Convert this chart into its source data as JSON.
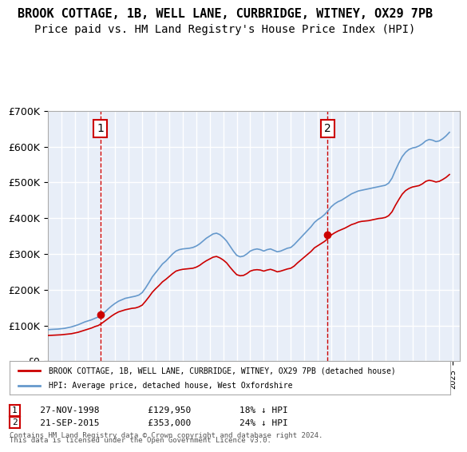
{
  "title": "BROOK COTTAGE, 1B, WELL LANE, CURBRIDGE, WITNEY, OX29 7PB",
  "subtitle": "Price paid vs. HM Land Registry's House Price Index (HPI)",
  "title_fontsize": 11,
  "subtitle_fontsize": 10,
  "ylim": [
    0,
    700000
  ],
  "yticks": [
    0,
    100000,
    200000,
    300000,
    400000,
    500000,
    600000,
    700000
  ],
  "ytick_labels": [
    "£0",
    "£100K",
    "£200K",
    "£300K",
    "£400K",
    "£500K",
    "£600K",
    "£700K"
  ],
  "xlim_start": 1995.0,
  "xlim_end": 2025.5,
  "background_color": "#e8eef8",
  "plot_bg_color": "#e8eef8",
  "grid_color": "#ffffff",
  "red_color": "#cc0000",
  "blue_color": "#6699cc",
  "purchase1_date": "27-NOV-1998",
  "purchase1_price": 129950,
  "purchase1_label": "1",
  "purchase1_x": 1998.9,
  "purchase2_date": "21-SEP-2015",
  "purchase2_price": 353000,
  "purchase2_label": "2",
  "purchase2_x": 2015.72,
  "legend_line1": "BROOK COTTAGE, 1B, WELL LANE, CURBRIDGE, WITNEY, OX29 7PB (detached house)",
  "legend_line2": "HPI: Average price, detached house, West Oxfordshire",
  "footer1": "Contains HM Land Registry data © Crown copyright and database right 2024.",
  "footer2": "This data is licensed under the Open Government Licence v3.0.",
  "note1_label": "1",
  "note1_text": "   27-NOV-1998         £129,950         18% ↓ HPI",
  "note2_label": "2",
  "note2_text": "   21-SEP-2015         £353,000         24% ↓ HPI",
  "hpi_data_x": [
    1995.0,
    1995.25,
    1995.5,
    1995.75,
    1996.0,
    1996.25,
    1996.5,
    1996.75,
    1997.0,
    1997.25,
    1997.5,
    1997.75,
    1998.0,
    1998.25,
    1998.5,
    1998.75,
    1999.0,
    1999.25,
    1999.5,
    1999.75,
    2000.0,
    2000.25,
    2000.5,
    2000.75,
    2001.0,
    2001.25,
    2001.5,
    2001.75,
    2002.0,
    2002.25,
    2002.5,
    2002.75,
    2003.0,
    2003.25,
    2003.5,
    2003.75,
    2004.0,
    2004.25,
    2004.5,
    2004.75,
    2005.0,
    2005.25,
    2005.5,
    2005.75,
    2006.0,
    2006.25,
    2006.5,
    2006.75,
    2007.0,
    2007.25,
    2007.5,
    2007.75,
    2008.0,
    2008.25,
    2008.5,
    2008.75,
    2009.0,
    2009.25,
    2009.5,
    2009.75,
    2010.0,
    2010.25,
    2010.5,
    2010.75,
    2011.0,
    2011.25,
    2011.5,
    2011.75,
    2012.0,
    2012.25,
    2012.5,
    2012.75,
    2013.0,
    2013.25,
    2013.5,
    2013.75,
    2014.0,
    2014.25,
    2014.5,
    2014.75,
    2015.0,
    2015.25,
    2015.5,
    2015.75,
    2016.0,
    2016.25,
    2016.5,
    2016.75,
    2017.0,
    2017.25,
    2017.5,
    2017.75,
    2018.0,
    2018.25,
    2018.5,
    2018.75,
    2019.0,
    2019.25,
    2019.5,
    2019.75,
    2020.0,
    2020.25,
    2020.5,
    2020.75,
    2021.0,
    2021.25,
    2021.5,
    2021.75,
    2022.0,
    2022.25,
    2022.5,
    2022.75,
    2023.0,
    2023.25,
    2023.5,
    2023.75,
    2024.0,
    2024.25,
    2024.5,
    2024.75
  ],
  "hpi_data_y": [
    88000,
    89000,
    89500,
    90000,
    91000,
    92000,
    94000,
    96000,
    99000,
    102000,
    106000,
    110000,
    113000,
    116000,
    120000,
    124000,
    130000,
    138000,
    147000,
    155000,
    162000,
    168000,
    172000,
    176000,
    178000,
    180000,
    182000,
    185000,
    192000,
    205000,
    220000,
    236000,
    248000,
    260000,
    272000,
    280000,
    290000,
    300000,
    308000,
    312000,
    314000,
    315000,
    316000,
    318000,
    322000,
    328000,
    336000,
    344000,
    350000,
    356000,
    358000,
    354000,
    346000,
    336000,
    322000,
    308000,
    296000,
    292000,
    294000,
    300000,
    308000,
    312000,
    314000,
    312000,
    308000,
    312000,
    314000,
    310000,
    306000,
    308000,
    312000,
    316000,
    318000,
    326000,
    336000,
    346000,
    356000,
    366000,
    376000,
    388000,
    396000,
    402000,
    410000,
    420000,
    432000,
    440000,
    446000,
    450000,
    456000,
    462000,
    468000,
    472000,
    476000,
    478000,
    480000,
    482000,
    484000,
    486000,
    488000,
    490000,
    492000,
    498000,
    512000,
    534000,
    554000,
    572000,
    584000,
    592000,
    596000,
    598000,
    602000,
    608000,
    616000,
    620000,
    618000,
    614000,
    616000,
    622000,
    630000,
    640000
  ],
  "red_data_x": [
    1995.0,
    1995.25,
    1995.5,
    1995.75,
    1996.0,
    1996.25,
    1996.5,
    1996.75,
    1997.0,
    1997.25,
    1997.5,
    1997.75,
    1998.0,
    1998.25,
    1998.5,
    1998.75,
    1999.0,
    1999.25,
    1999.5,
    1999.75,
    2000.0,
    2000.25,
    2000.5,
    2000.75,
    2001.0,
    2001.25,
    2001.5,
    2001.75,
    2002.0,
    2002.25,
    2002.5,
    2002.75,
    2003.0,
    2003.25,
    2003.5,
    2003.75,
    2004.0,
    2004.25,
    2004.5,
    2004.75,
    2005.0,
    2005.25,
    2005.5,
    2005.75,
    2006.0,
    2006.25,
    2006.5,
    2006.75,
    2007.0,
    2007.25,
    2007.5,
    2007.75,
    2008.0,
    2008.25,
    2008.5,
    2008.75,
    2009.0,
    2009.25,
    2009.5,
    2009.75,
    2010.0,
    2010.25,
    2010.5,
    2010.75,
    2011.0,
    2011.25,
    2011.5,
    2011.75,
    2012.0,
    2012.25,
    2012.5,
    2012.75,
    2013.0,
    2013.25,
    2013.5,
    2013.75,
    2014.0,
    2014.25,
    2014.5,
    2014.75,
    2015.0,
    2015.25,
    2015.5,
    2015.75,
    2016.0,
    2016.25,
    2016.5,
    2016.75,
    2017.0,
    2017.25,
    2017.5,
    2017.75,
    2018.0,
    2018.25,
    2018.5,
    2018.75,
    2019.0,
    2019.25,
    2019.5,
    2019.75,
    2020.0,
    2020.25,
    2020.5,
    2020.75,
    2021.0,
    2021.25,
    2021.5,
    2021.75,
    2022.0,
    2022.25,
    2022.5,
    2022.75,
    2023.0,
    2023.25,
    2023.5,
    2023.75,
    2024.0,
    2024.25,
    2024.5,
    2024.75
  ],
  "red_data_y": [
    72000,
    72500,
    73000,
    73500,
    74000,
    75000,
    76000,
    77000,
    79000,
    81000,
    84000,
    87000,
    90000,
    93000,
    97000,
    100000,
    106000,
    113000,
    120000,
    127000,
    133000,
    138000,
    141000,
    144000,
    146000,
    148000,
    149000,
    152000,
    157000,
    168000,
    180000,
    193000,
    203000,
    212000,
    222000,
    229000,
    237000,
    245000,
    252000,
    255000,
    257000,
    258000,
    259000,
    260000,
    263000,
    268000,
    275000,
    281000,
    286000,
    291000,
    293000,
    289000,
    283000,
    275000,
    263000,
    252000,
    242000,
    239000,
    240000,
    245000,
    252000,
    255000,
    256000,
    255000,
    252000,
    255000,
    257000,
    254000,
    250000,
    252000,
    255000,
    258000,
    260000,
    266000,
    275000,
    283000,
    291000,
    299000,
    307000,
    317000,
    323000,
    329000,
    335000,
    343000,
    353000,
    359000,
    364000,
    368000,
    372000,
    377000,
    382000,
    385000,
    389000,
    391000,
    392000,
    393000,
    395000,
    397000,
    399000,
    400000,
    402000,
    407000,
    418000,
    436000,
    452000,
    467000,
    477000,
    483000,
    487000,
    489000,
    491000,
    496000,
    503000,
    506000,
    504000,
    501000,
    503000,
    508000,
    514000,
    522000
  ]
}
